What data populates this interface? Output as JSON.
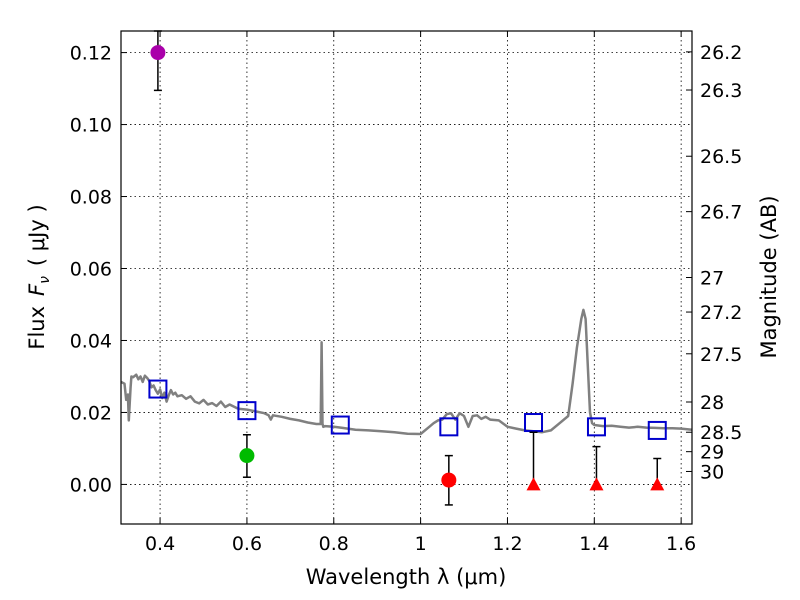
{
  "chart_data": {
    "type": "scatter",
    "xlabel": "Wavelength  λ (μm)",
    "ylabel_prefix": "Flux",
    "ylabel_symbol": "F",
    "ylabel_subscript": "ν",
    "ylabel_units": "( μJy )",
    "y2label": "Magnitude (AB)",
    "xlim": [
      0.31,
      1.625
    ],
    "ylim": [
      -0.011,
      0.126
    ],
    "grid": true,
    "x_ticks": [
      0.4,
      0.6,
      0.8,
      1.0,
      1.2,
      1.4,
      1.6
    ],
    "x_tick_labels": [
      "0.4",
      "0.6",
      "0.8",
      "1",
      "1.2",
      "1.4",
      "1.6"
    ],
    "y_ticks": [
      0.0,
      0.02,
      0.04,
      0.06,
      0.08,
      0.1,
      0.12
    ],
    "y_tick_labels": [
      "0.00",
      "0.02",
      "0.04",
      "0.06",
      "0.08",
      "0.10",
      "0.12"
    ],
    "mag_ticks": [
      {
        "label": "26.2",
        "flux": 0.1202
      },
      {
        "label": "26.3",
        "flux": 0.1096
      },
      {
        "label": "26.5",
        "flux": 0.0912
      },
      {
        "label": "26.7",
        "flux": 0.0758
      },
      {
        "label": "27",
        "flux": 0.0575
      },
      {
        "label": "27.2",
        "flux": 0.0479
      },
      {
        "label": "27.5",
        "flux": 0.0363
      },
      {
        "label": "28",
        "flux": 0.0229
      },
      {
        "label": "28.5",
        "flux": 0.0145
      },
      {
        "label": "29",
        "flux": 0.0091
      },
      {
        "label": "30",
        "flux": 0.0036
      }
    ],
    "model_spectrum": {
      "color": "#808080",
      "x": [
        0.31,
        0.318,
        0.322,
        0.326,
        0.328,
        0.332,
        0.334,
        0.338,
        0.345,
        0.35,
        0.355,
        0.36,
        0.365,
        0.37,
        0.375,
        0.38,
        0.385,
        0.39,
        0.395,
        0.4,
        0.405,
        0.41,
        0.415,
        0.42,
        0.425,
        0.43,
        0.435,
        0.44,
        0.45,
        0.46,
        0.47,
        0.48,
        0.49,
        0.5,
        0.51,
        0.52,
        0.53,
        0.54,
        0.55,
        0.56,
        0.58,
        0.6,
        0.62,
        0.64,
        0.65,
        0.655,
        0.66,
        0.68,
        0.7,
        0.72,
        0.74,
        0.76,
        0.77,
        0.772,
        0.774,
        0.776,
        0.78,
        0.8,
        0.82,
        0.85,
        0.88,
        0.91,
        0.94,
        0.97,
        1.0,
        1.02,
        1.03,
        1.04,
        1.05,
        1.06,
        1.07,
        1.08,
        1.09,
        1.1,
        1.11,
        1.12,
        1.13,
        1.14,
        1.15,
        1.16,
        1.18,
        1.2,
        1.22,
        1.24,
        1.26,
        1.28,
        1.3,
        1.32,
        1.34,
        1.35,
        1.36,
        1.37,
        1.375,
        1.38,
        1.385,
        1.39,
        1.395,
        1.4,
        1.42,
        1.44,
        1.46,
        1.48,
        1.5,
        1.52,
        1.54,
        1.56,
        1.58,
        1.6,
        1.625
      ],
      "y": [
        0.0285,
        0.028,
        0.0235,
        0.025,
        0.0178,
        0.027,
        0.03,
        0.0298,
        0.0305,
        0.0292,
        0.03,
        0.0285,
        0.0302,
        0.0296,
        0.0288,
        0.027,
        0.0275,
        0.0262,
        0.0252,
        0.0264,
        0.024,
        0.0255,
        0.023,
        0.0248,
        0.0262,
        0.025,
        0.0255,
        0.0245,
        0.0248,
        0.0238,
        0.0245,
        0.023,
        0.0225,
        0.0235,
        0.0222,
        0.0226,
        0.0218,
        0.023,
        0.0215,
        0.0222,
        0.021,
        0.0208,
        0.0203,
        0.0198,
        0.0192,
        0.018,
        0.0192,
        0.0188,
        0.0182,
        0.0178,
        0.0172,
        0.0168,
        0.0168,
        0.0395,
        0.0168,
        0.016,
        0.0162,
        0.016,
        0.0157,
        0.0152,
        0.015,
        0.0148,
        0.0145,
        0.0141,
        0.014,
        0.016,
        0.017,
        0.0178,
        0.018,
        0.0195,
        0.0198,
        0.018,
        0.0198,
        0.019,
        0.016,
        0.019,
        0.0192,
        0.0182,
        0.0188,
        0.018,
        0.0178,
        0.016,
        0.0155,
        0.015,
        0.0148,
        0.0145,
        0.015,
        0.017,
        0.019,
        0.028,
        0.038,
        0.046,
        0.0485,
        0.046,
        0.033,
        0.02,
        0.017,
        0.0165,
        0.0162,
        0.0163,
        0.016,
        0.0158,
        0.016,
        0.0158,
        0.0157,
        0.0156,
        0.0156,
        0.0155,
        0.0152
      ]
    },
    "model_points": {
      "color": "#0000cc",
      "marker": "open-square",
      "x": [
        0.395,
        0.6,
        0.815,
        1.065,
        1.26,
        1.405,
        1.545
      ],
      "y": [
        0.0265,
        0.0205,
        0.0165,
        0.016,
        0.0172,
        0.016,
        0.015
      ]
    },
    "detections": [
      {
        "x": 0.395,
        "y": 0.12,
        "err_low": 0.1095,
        "err_high": 0.126,
        "color": "#aa00aa"
      },
      {
        "x": 0.6,
        "y": 0.008,
        "err_low": 0.002,
        "err_high": 0.0138,
        "color": "#00bb00"
      },
      {
        "x": 1.065,
        "y": 0.0012,
        "err_low": -0.0057,
        "err_high": 0.008,
        "color": "#ff0000"
      }
    ],
    "upper_limits": {
      "color": "#ff0000",
      "marker": "triangle",
      "points": [
        {
          "x": 1.26,
          "y": 0.0,
          "err_high": 0.0145
        },
        {
          "x": 1.405,
          "y": 0.0,
          "err_high": 0.0105
        },
        {
          "x": 1.545,
          "y": 0.0,
          "err_high": 0.0072
        }
      ]
    }
  }
}
